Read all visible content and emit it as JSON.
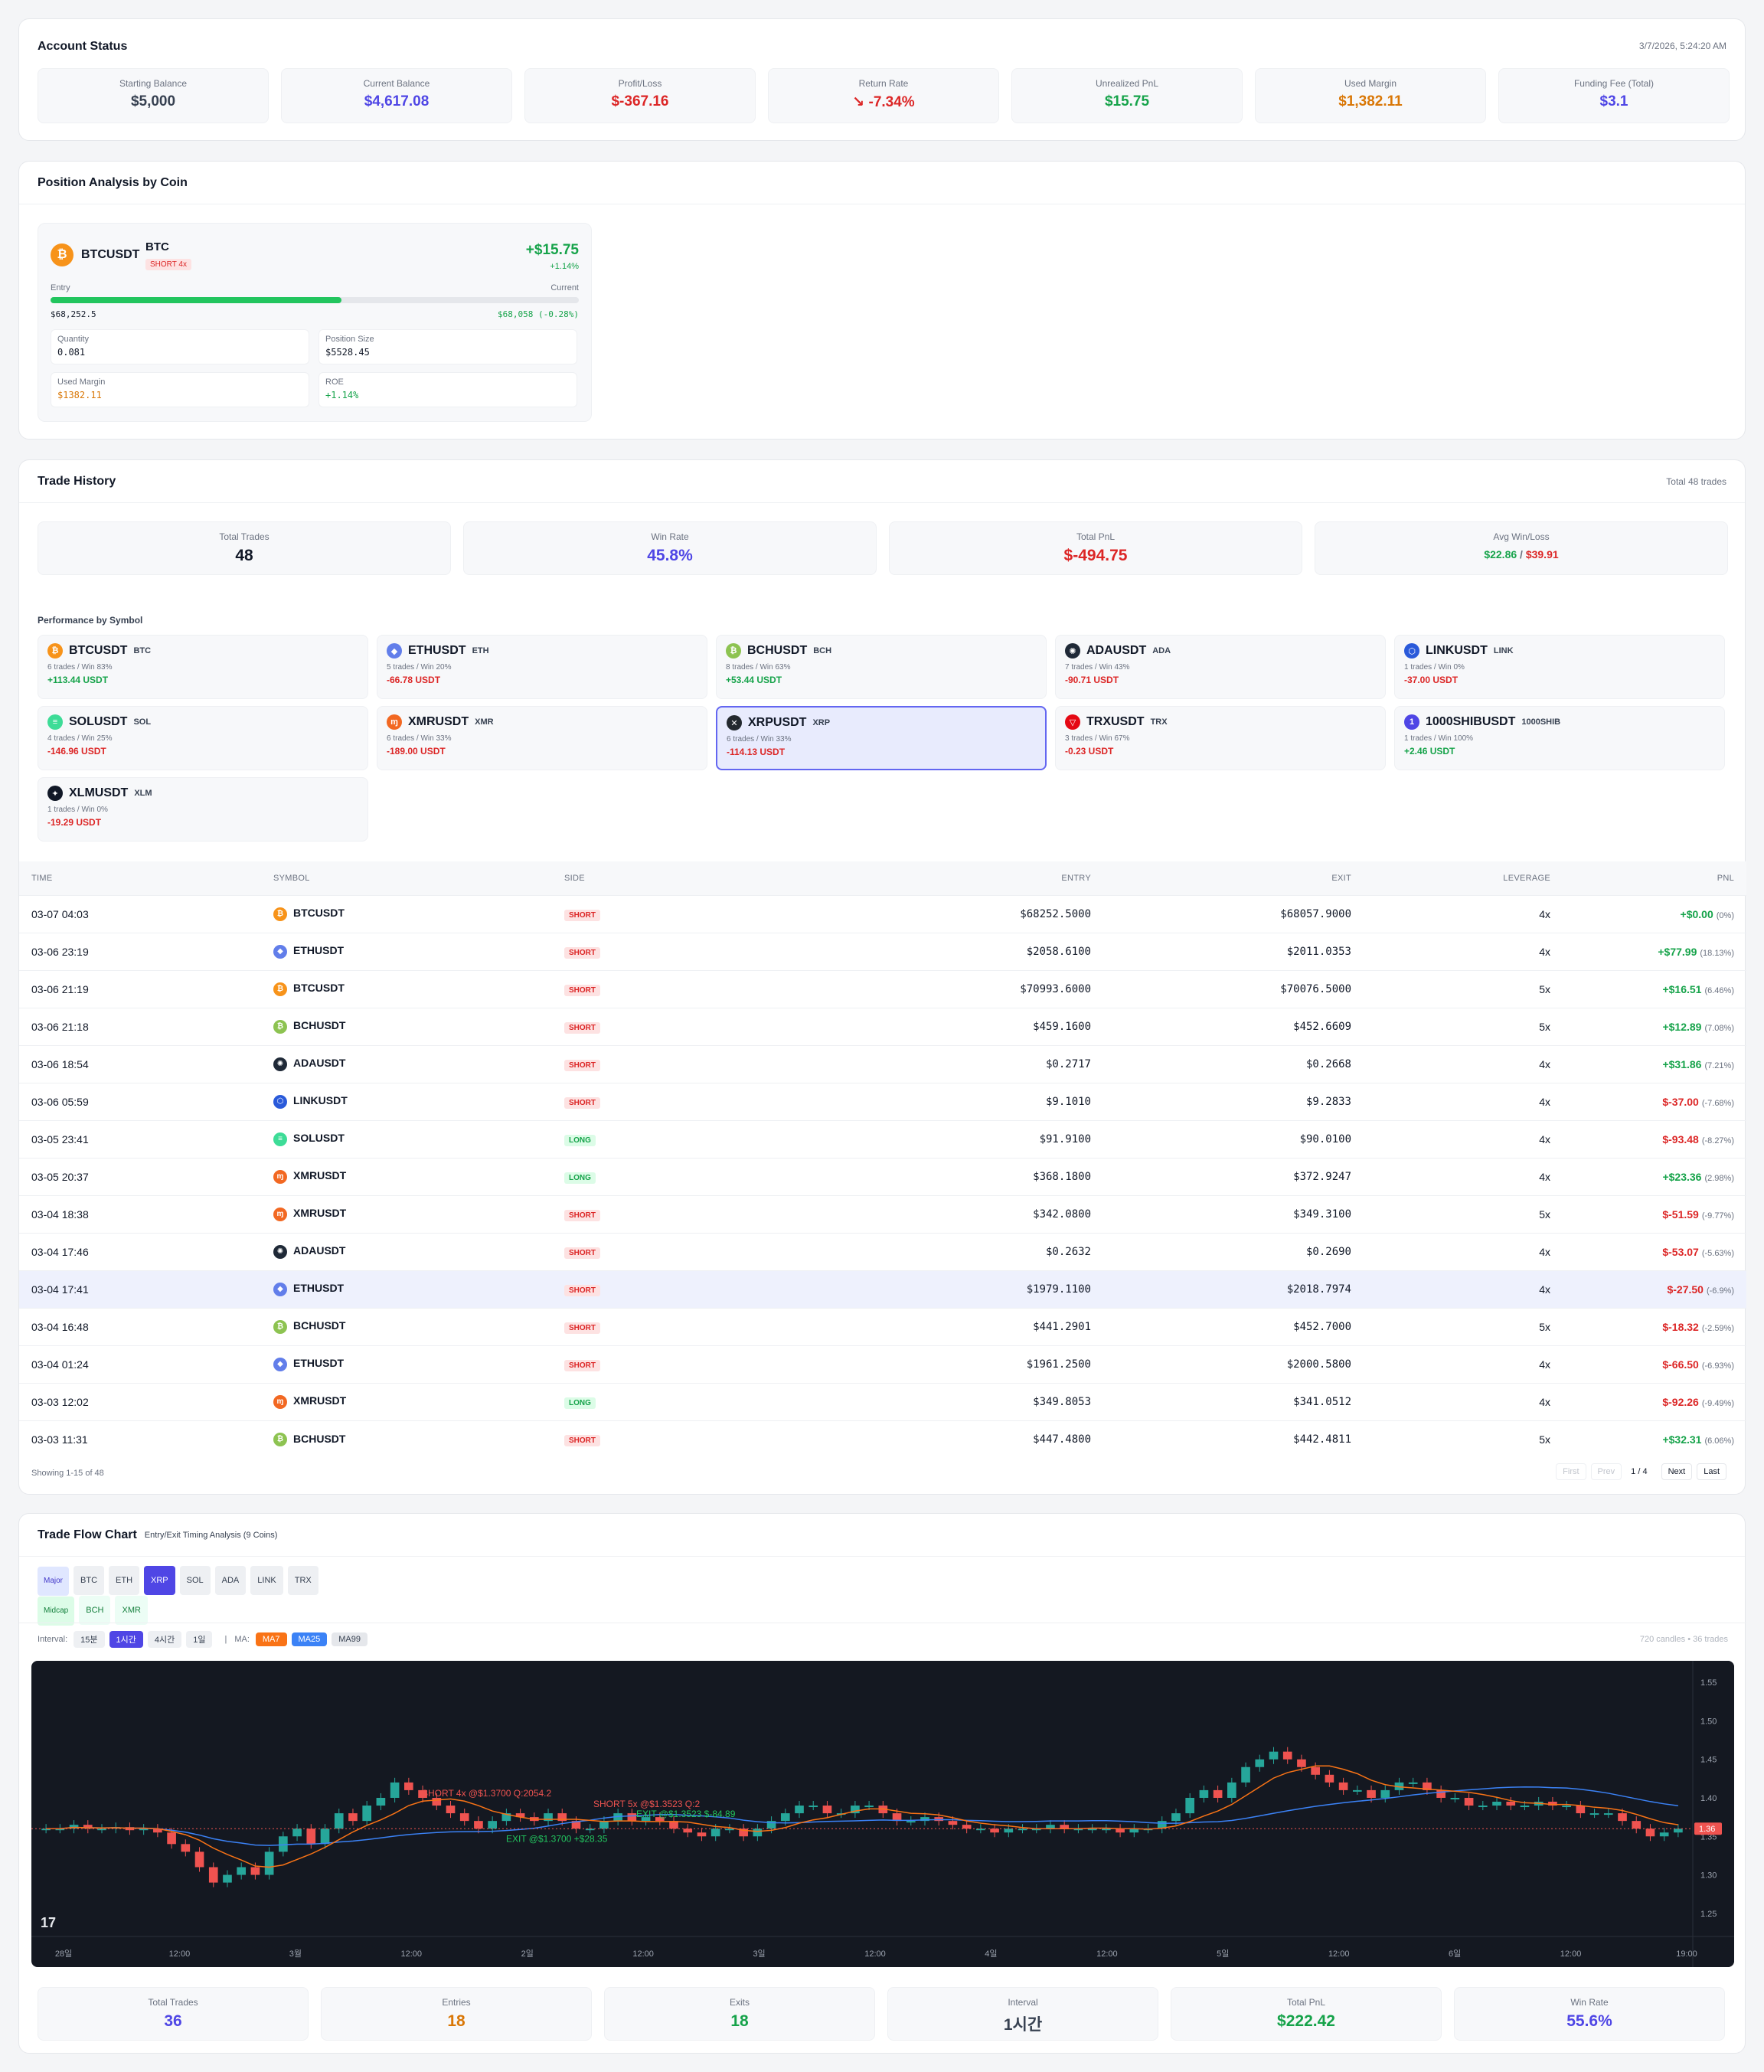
{
  "account": {
    "title": "Account Status",
    "timestamp": "3/7/2026, 5:24:20 AM",
    "stats": [
      {
        "label": "Starting Balance",
        "value": "$5,000",
        "color": "#374151"
      },
      {
        "label": "Current Balance",
        "value": "$4,617.08",
        "color": "#4f46e5"
      },
      {
        "label": "Profit/Loss",
        "value": "$-367.16",
        "color": "#dc2626"
      },
      {
        "label": "Return Rate",
        "value": "↘ -7.34%",
        "color": "#dc2626"
      },
      {
        "label": "Unrealized PnL",
        "value": "$15.75",
        "color": "#16a34a"
      },
      {
        "label": "Used Margin",
        "value": "$1,382.11",
        "color": "#d97706"
      },
      {
        "label": "Funding Fee (Total)",
        "value": "$3.1",
        "color": "#4f46e5"
      }
    ]
  },
  "position": {
    "title": "Position Analysis by Coin",
    "symbol": "BTCUSDT",
    "coin": "BTC",
    "badge": "SHORT 4x",
    "pnl": "+$15.75",
    "pnl_pct": "+1.14%",
    "entry_label": "Entry",
    "current_label": "Current",
    "entry": "$68,252.5",
    "current": "$68,058 (-0.28%)",
    "progress": 0.55,
    "quantity_label": "Quantity",
    "quantity": "0.081",
    "size_label": "Position Size",
    "size": "$5528.45",
    "margin_label": "Used Margin",
    "margin": "$1382.11",
    "roe_label": "ROE",
    "roe": "+1.14%"
  },
  "history": {
    "title": "Trade History",
    "total": "Total 48 trades",
    "summary": {
      "trades_label": "Total Trades",
      "trades": "48",
      "win_label": "Win Rate",
      "win": "45.8%",
      "pnl_label": "Total PnL",
      "pnl": "$-494.75",
      "avg_label": "Avg Win/Loss",
      "avg_win": "$22.86",
      "avg_sep": " / ",
      "avg_loss": "$39.91"
    },
    "perf_title": "Performance by Symbol",
    "perf": [
      {
        "sym": "BTCUSDT",
        "coin": "BTC",
        "stats": "6 trades / Win 83%",
        "pnl": "+113.44 USDT",
        "up": true,
        "color": "#f7931a",
        "glyph": "₿"
      },
      {
        "sym": "ETHUSDT",
        "coin": "ETH",
        "stats": "5 trades / Win 20%",
        "pnl": "-66.78 USDT",
        "up": false,
        "color": "#627eea",
        "glyph": "◆"
      },
      {
        "sym": "BCHUSDT",
        "coin": "BCH",
        "stats": "8 trades / Win 63%",
        "pnl": "+53.44 USDT",
        "up": true,
        "color": "#8dc351",
        "glyph": "₿"
      },
      {
        "sym": "ADAUSDT",
        "coin": "ADA",
        "stats": "7 trades / Win 43%",
        "pnl": "-90.71 USDT",
        "up": false,
        "color": "#1f2937",
        "glyph": "✺"
      },
      {
        "sym": "LINKUSDT",
        "coin": "LINK",
        "stats": "1 trades / Win 0%",
        "pnl": "-37.00 USDT",
        "up": false,
        "color": "#2a5ada",
        "glyph": "⬡"
      },
      {
        "sym": "SOLUSDT",
        "coin": "SOL",
        "stats": "4 trades / Win 25%",
        "pnl": "-146.96 USDT",
        "up": false,
        "color": "#3ddc97",
        "glyph": "≡"
      },
      {
        "sym": "XMRUSDT",
        "coin": "XMR",
        "stats": "6 trades / Win 33%",
        "pnl": "-189.00 USDT",
        "up": false,
        "color": "#f26822",
        "glyph": "ɱ"
      },
      {
        "sym": "XRPUSDT",
        "coin": "XRP",
        "stats": "6 trades / Win 33%",
        "pnl": "-114.13 USDT",
        "up": false,
        "color": "#23292f",
        "glyph": "✕",
        "selected": true
      },
      {
        "sym": "TRXUSDT",
        "coin": "TRX",
        "stats": "3 trades / Win 67%",
        "pnl": "-0.23 USDT",
        "up": false,
        "color": "#e50914",
        "glyph": "▽"
      },
      {
        "sym": "1000SHIBUSDT",
        "coin": "1000SHIB",
        "stats": "1 trades / Win 100%",
        "pnl": "+2.46 USDT",
        "up": true,
        "color": "#4f46e5",
        "glyph": "1"
      },
      {
        "sym": "XLMUSDT",
        "coin": "XLM",
        "stats": "1 trades / Win 0%",
        "pnl": "-19.29 USDT",
        "up": false,
        "color": "#111827",
        "glyph": "✦"
      }
    ],
    "columns": [
      "TIME",
      "SYMBOL",
      "SIDE",
      "ENTRY",
      "EXIT",
      "LEVERAGE",
      "PNL"
    ],
    "rows": [
      {
        "time": "03-07 04:03",
        "sym": "BTCUSDT",
        "side": "SHORT",
        "entry": "$68252.5000",
        "exit": "$68057.9000",
        "lev": "4x",
        "pnl": "+$0.00",
        "pct": "(0%)",
        "up": true,
        "color": "#f7931a",
        "glyph": "₿"
      },
      {
        "time": "03-06 23:19",
        "sym": "ETHUSDT",
        "side": "SHORT",
        "entry": "$2058.6100",
        "exit": "$2011.0353",
        "lev": "4x",
        "pnl": "+$77.99",
        "pct": "(18.13%)",
        "up": true,
        "color": "#627eea",
        "glyph": "◆"
      },
      {
        "time": "03-06 21:19",
        "sym": "BTCUSDT",
        "side": "SHORT",
        "entry": "$70993.6000",
        "exit": "$70076.5000",
        "lev": "5x",
        "pnl": "+$16.51",
        "pct": "(6.46%)",
        "up": true,
        "color": "#f7931a",
        "glyph": "₿"
      },
      {
        "time": "03-06 21:18",
        "sym": "BCHUSDT",
        "side": "SHORT",
        "entry": "$459.1600",
        "exit": "$452.6609",
        "lev": "5x",
        "pnl": "+$12.89",
        "pct": "(7.08%)",
        "up": true,
        "color": "#8dc351",
        "glyph": "₿"
      },
      {
        "time": "03-06 18:54",
        "sym": "ADAUSDT",
        "side": "SHORT",
        "entry": "$0.2717",
        "exit": "$0.2668",
        "lev": "4x",
        "pnl": "+$31.86",
        "pct": "(7.21%)",
        "up": true,
        "color": "#1f2937",
        "glyph": "✺"
      },
      {
        "time": "03-06 05:59",
        "sym": "LINKUSDT",
        "side": "SHORT",
        "entry": "$9.1010",
        "exit": "$9.2833",
        "lev": "4x",
        "pnl": "$-37.00",
        "pct": "(-7.68%)",
        "up": false,
        "color": "#2a5ada",
        "glyph": "⬡"
      },
      {
        "time": "03-05 23:41",
        "sym": "SOLUSDT",
        "side": "LONG",
        "entry": "$91.9100",
        "exit": "$90.0100",
        "lev": "4x",
        "pnl": "$-93.48",
        "pct": "(-8.27%)",
        "up": false,
        "color": "#3ddc97",
        "glyph": "≡"
      },
      {
        "time": "03-05 20:37",
        "sym": "XMRUSDT",
        "side": "LONG",
        "entry": "$368.1800",
        "exit": "$372.9247",
        "lev": "4x",
        "pnl": "+$23.36",
        "pct": "(2.98%)",
        "up": true,
        "color": "#f26822",
        "glyph": "ɱ"
      },
      {
        "time": "03-04 18:38",
        "sym": "XMRUSDT",
        "side": "SHORT",
        "entry": "$342.0800",
        "exit": "$349.3100",
        "lev": "5x",
        "pnl": "$-51.59",
        "pct": "(-9.77%)",
        "up": false,
        "color": "#f26822",
        "glyph": "ɱ"
      },
      {
        "time": "03-04 17:46",
        "sym": "ADAUSDT",
        "side": "SHORT",
        "entry": "$0.2632",
        "exit": "$0.2690",
        "lev": "4x",
        "pnl": "$-53.07",
        "pct": "(-5.63%)",
        "up": false,
        "color": "#1f2937",
        "glyph": "✺"
      },
      {
        "time": "03-04 17:41",
        "sym": "ETHUSDT",
        "side": "SHORT",
        "entry": "$1979.1100",
        "exit": "$2018.7974",
        "lev": "4x",
        "pnl": "$-27.50",
        "pct": "(-6.9%)",
        "up": false,
        "color": "#627eea",
        "glyph": "◆",
        "hl": true
      },
      {
        "time": "03-04 16:48",
        "sym": "BCHUSDT",
        "side": "SHORT",
        "entry": "$441.2901",
        "exit": "$452.7000",
        "lev": "5x",
        "pnl": "$-18.32",
        "pct": "(-2.59%)",
        "up": false,
        "color": "#8dc351",
        "glyph": "₿"
      },
      {
        "time": "03-04 01:24",
        "sym": "ETHUSDT",
        "side": "SHORT",
        "entry": "$1961.2500",
        "exit": "$2000.5800",
        "lev": "4x",
        "pnl": "$-66.50",
        "pct": "(-6.93%)",
        "up": false,
        "color": "#627eea",
        "glyph": "◆"
      },
      {
        "time": "03-03 12:02",
        "sym": "XMRUSDT",
        "side": "LONG",
        "entry": "$349.8053",
        "exit": "$341.0512",
        "lev": "4x",
        "pnl": "$-92.26",
        "pct": "(-9.49%)",
        "up": false,
        "color": "#f26822",
        "glyph": "ɱ"
      },
      {
        "time": "03-03 11:31",
        "sym": "BCHUSDT",
        "side": "SHORT",
        "entry": "$447.4800",
        "exit": "$442.4811",
        "lev": "5x",
        "pnl": "+$32.31",
        "pct": "(6.06%)",
        "up": true,
        "color": "#8dc351",
        "glyph": "₿"
      }
    ],
    "showing": "Showing 1-15 of 48",
    "pager": {
      "first": "First",
      "prev": "Prev",
      "page": "1 / 4",
      "next": "Next",
      "last": "Last"
    }
  },
  "flow": {
    "title": "Trade Flow Chart",
    "subtitle": "Entry/Exit Timing Analysis (9 Coins)",
    "major_label": "Major",
    "major": [
      "BTC",
      "ETH",
      "XRP",
      "SOL",
      "ADA",
      "LINK",
      "TRX"
    ],
    "active": "XRP",
    "midcap_label": "Midcap",
    "midcap": [
      "BCH",
      "XMR"
    ],
    "interval_label": "Interval:",
    "intervals": [
      "15분",
      "1시간",
      "4시간",
      "1일"
    ],
    "interval_active": "1시간",
    "ma_label": "MA:",
    "ma": [
      {
        "name": "MA7",
        "color": "#f97316"
      },
      {
        "name": "MA25",
        "color": "#3b82f6"
      },
      {
        "name": "MA99",
        "color": "#e5e7eb"
      }
    ],
    "candles_info": "720 candles • 36 trades",
    "summary": [
      {
        "label": "Total Trades",
        "value": "36",
        "color": "#4f46e5"
      },
      {
        "label": "Entries",
        "value": "18",
        "color": "#d97706"
      },
      {
        "label": "Exits",
        "value": "18",
        "color": "#16a34a"
      },
      {
        "label": "Interval",
        "value": "1시간",
        "color": "#374151"
      },
      {
        "label": "Total PnL",
        "value": "$222.42",
        "color": "#16a34a"
      },
      {
        "label": "Win Rate",
        "value": "55.6%",
        "color": "#4f46e5"
      }
    ]
  },
  "chart_data": {
    "type": "candlestick",
    "symbol": "XRPUSDT",
    "interval": "1시간",
    "y_ticks": [
      "1.55",
      "1.50",
      "1.45",
      "1.40",
      "1.35",
      "1.30",
      "1.25"
    ],
    "ylim": [
      1.22,
      1.57
    ],
    "x_ticks": [
      "28일",
      "12:00",
      "3월",
      "12:00",
      "2일",
      "12:00",
      "3일",
      "12:00",
      "4일",
      "12:00",
      "5일",
      "12:00",
      "6일",
      "12:00",
      "19:00"
    ],
    "last_price": "1.36",
    "closes": [
      1.36,
      1.36,
      1.365,
      1.36,
      1.36,
      1.362,
      1.358,
      1.36,
      1.355,
      1.34,
      1.33,
      1.31,
      1.29,
      1.3,
      1.31,
      1.3,
      1.33,
      1.35,
      1.36,
      1.34,
      1.36,
      1.38,
      1.37,
      1.39,
      1.4,
      1.42,
      1.41,
      1.4,
      1.39,
      1.38,
      1.37,
      1.36,
      1.37,
      1.38,
      1.375,
      1.37,
      1.38,
      1.37,
      1.36,
      1.36,
      1.37,
      1.38,
      1.37,
      1.375,
      1.37,
      1.36,
      1.355,
      1.35,
      1.36,
      1.36,
      1.35,
      1.36,
      1.37,
      1.38,
      1.39,
      1.39,
      1.38,
      1.38,
      1.39,
      1.39,
      1.38,
      1.37,
      1.37,
      1.375,
      1.37,
      1.365,
      1.36,
      1.36,
      1.355,
      1.36,
      1.36,
      1.36,
      1.365,
      1.36,
      1.36,
      1.36,
      1.36,
      1.355,
      1.36,
      1.36,
      1.37,
      1.38,
      1.4,
      1.41,
      1.4,
      1.42,
      1.44,
      1.45,
      1.46,
      1.45,
      1.44,
      1.43,
      1.42,
      1.41,
      1.41,
      1.4,
      1.41,
      1.42,
      1.42,
      1.41,
      1.4,
      1.4,
      1.39,
      1.39,
      1.395,
      1.39,
      1.39,
      1.395,
      1.39,
      1.39,
      1.38,
      1.38,
      1.38,
      1.37,
      1.36,
      1.35,
      1.355,
      1.36
    ],
    "annotations": [
      {
        "text": "SHORT 4x @$1.3700 Q:2054.2",
        "type": "entry"
      },
      {
        "text": "SHORT 5x @$1.3523 Q:2",
        "type": "entry"
      },
      {
        "text": "EXIT @$1.3523 $-84.89",
        "type": "exit"
      },
      {
        "text": "EXIT @$1.3700 +$28.35",
        "type": "exit"
      }
    ]
  }
}
